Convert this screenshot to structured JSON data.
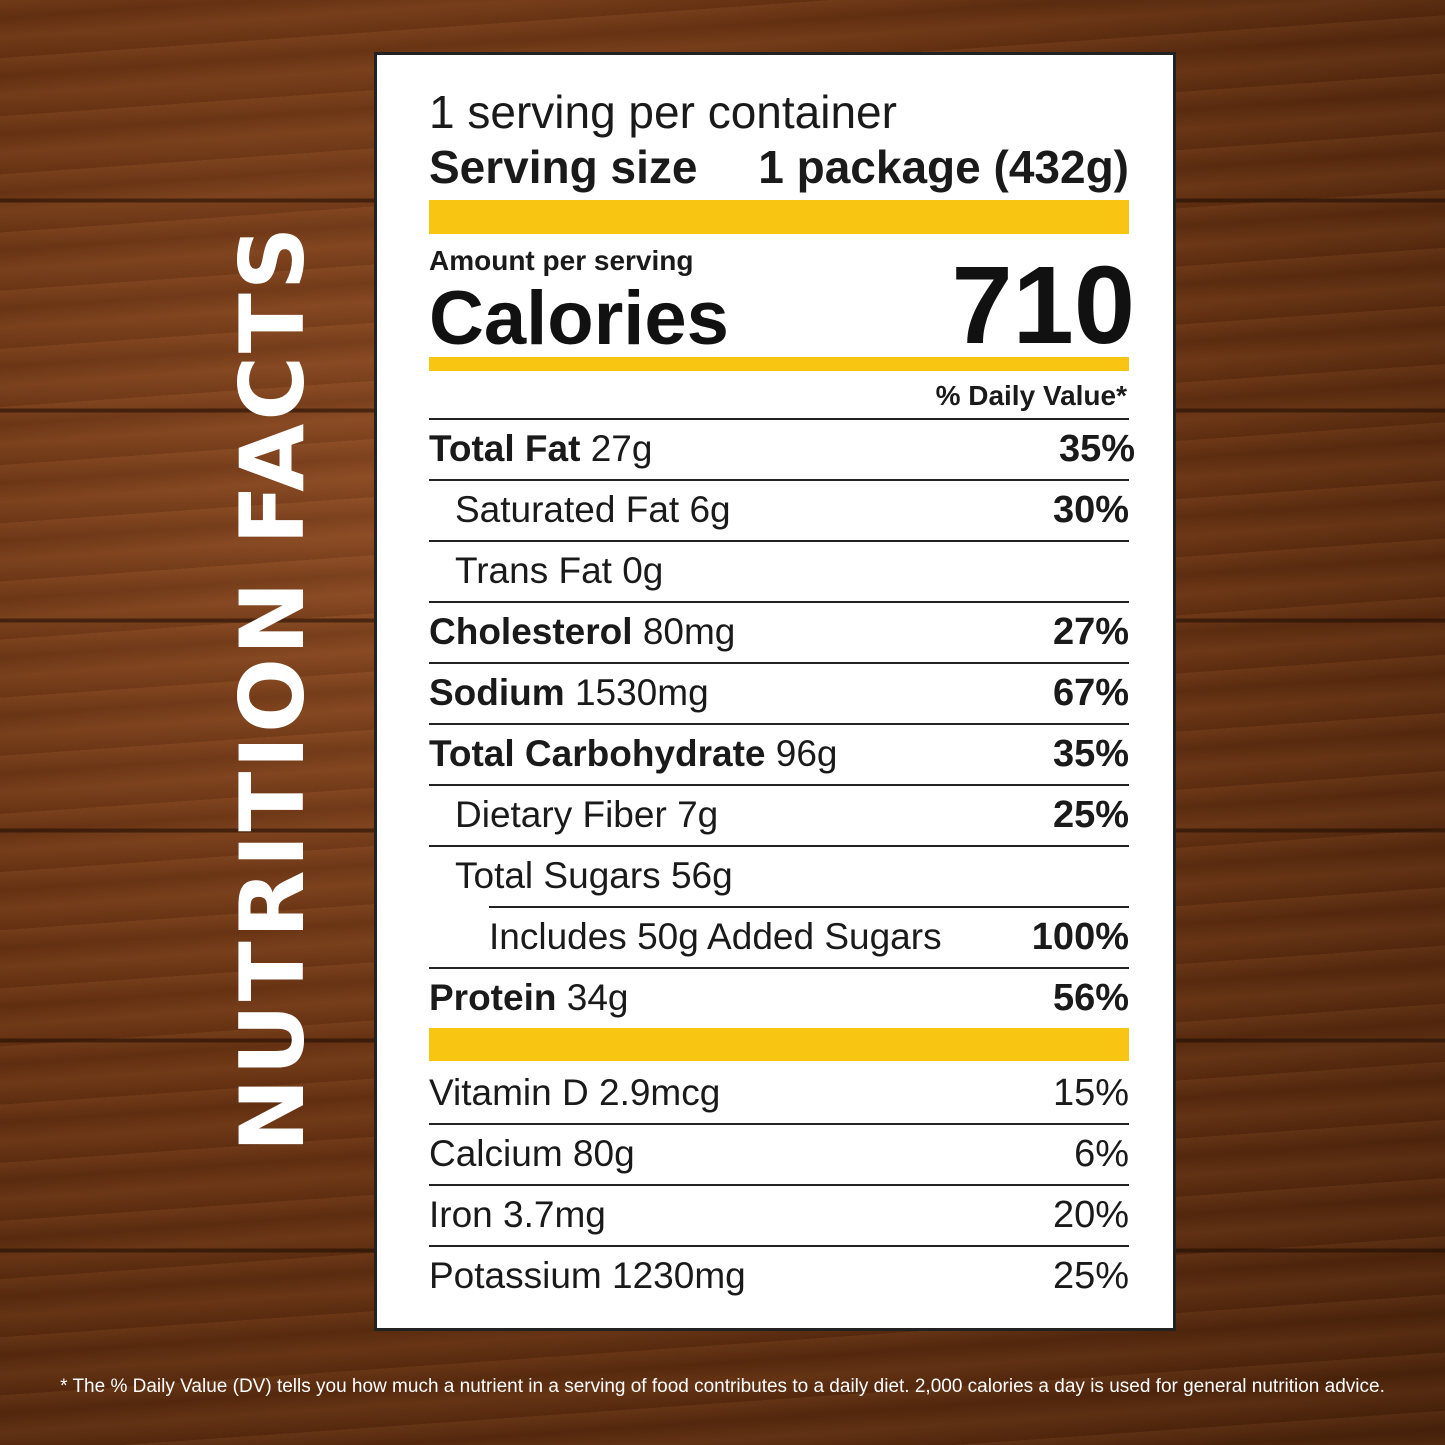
{
  "side_title": "NUTRITION FACTS",
  "servings_per_container": "1 serving per container",
  "serving_size_label": "Serving size",
  "serving_size_value": "1 package (432g)",
  "amount_per_serving": "Amount per serving",
  "calories_label": "Calories",
  "calories_value": "710",
  "daily_value_header": "% Daily Value*",
  "nutrients": [
    {
      "name": "Total Fat",
      "amount": "27g",
      "dv": "35%"
    },
    {
      "name": "Saturated Fat",
      "amount": "6g",
      "dv": "30%"
    },
    {
      "name": "Trans Fat",
      "amount": "0g",
      "dv": ""
    },
    {
      "name": "Cholesterol",
      "amount": "80mg",
      "dv": "27%"
    },
    {
      "name": "Sodium",
      "amount": "1530mg",
      "dv": "67%"
    },
    {
      "name": "Total Carbohydrate",
      "amount": "96g",
      "dv": "35%"
    },
    {
      "name": "Dietary Fiber",
      "amount": "7g",
      "dv": "25%"
    },
    {
      "name": "Total Sugars",
      "amount": "56g",
      "dv": ""
    },
    {
      "name": "Includes 50g Added Sugars",
      "amount": "",
      "dv": "100%"
    },
    {
      "name": "Protein",
      "amount": "34g",
      "dv": "56%"
    }
  ],
  "vitamins": [
    {
      "name": "Vitamin D",
      "amount": "2.9mcg",
      "dv": "15%"
    },
    {
      "name": "Calcium",
      "amount": "80g",
      "dv": "6%"
    },
    {
      "name": "Iron",
      "amount": "3.7mg",
      "dv": "20%"
    },
    {
      "name": "Potassium",
      "amount": "1230mg",
      "dv": "25%"
    }
  ],
  "footnote": "* The % Daily Value (DV) tells you how much a nutrient in a serving of food contributes to a daily diet. 2,000 calories a day is used for general nutrition advice.",
  "colors": {
    "accent_bar": "#f7c512",
    "text": "#1a1a1a",
    "panel": "#ffffff",
    "wood": "#6a3312"
  }
}
